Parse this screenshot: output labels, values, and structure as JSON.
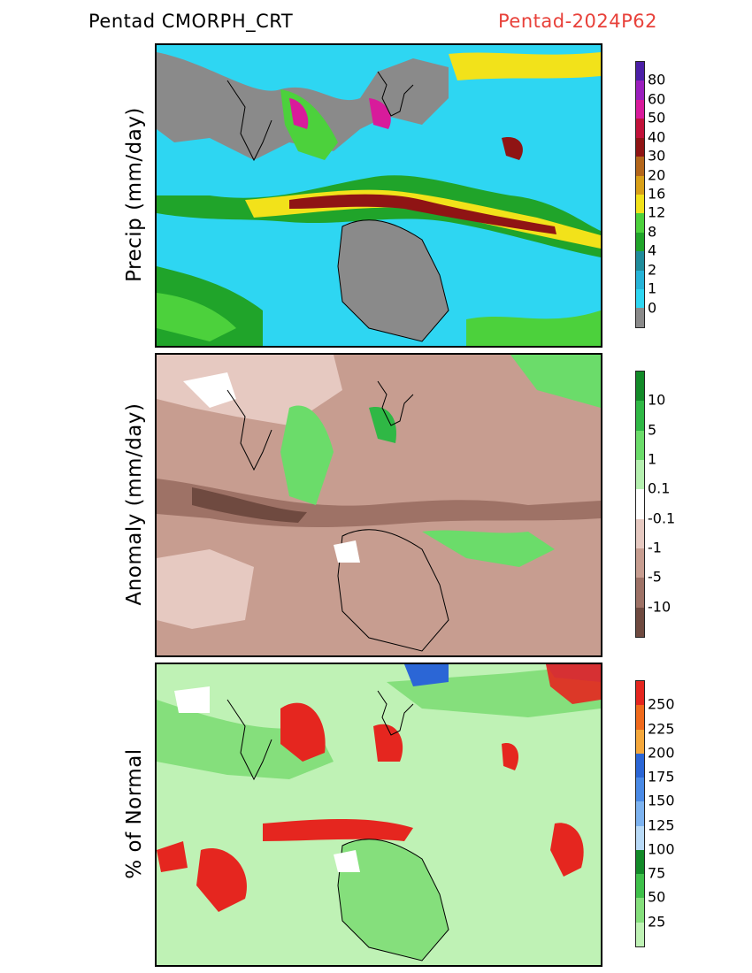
{
  "header": {
    "title_left": "Pentad CMORPH_CRT",
    "title_right": "Pentad-2024P62",
    "title_right_color": "#e8413a"
  },
  "panels": [
    {
      "id": "precip",
      "ylabel": "Precip (mm/day)",
      "colorbar": {
        "labels": [
          "80",
          "60",
          "50",
          "40",
          "30",
          "20",
          "16",
          "12",
          "8",
          "4",
          "2",
          "1",
          "0"
        ],
        "colors": [
          "#4b1fa6",
          "#9a1fbd",
          "#d81b9b",
          "#c1123a",
          "#8f1414",
          "#b4661a",
          "#d9a018",
          "#f2e21a",
          "#4cd13c",
          "#20a42a",
          "#1f8c9b",
          "#26b4d8",
          "#2ed6f2",
          "#8a8a8a"
        ]
      }
    },
    {
      "id": "anomaly",
      "ylabel": "Anomaly (mm/day)",
      "colorbar": {
        "labels": [
          "10",
          "5",
          "1",
          "0.1",
          "-0.1",
          "-1",
          "-5",
          "-10"
        ],
        "colors": [
          "#128a28",
          "#2fb845",
          "#6bdc6a",
          "#b5f0b0",
          "#ffffff",
          "#e6c9c1",
          "#c79d90",
          "#9e7266",
          "#6f4a40"
        ]
      }
    },
    {
      "id": "percent",
      "ylabel": "% of Normal",
      "colorbar": {
        "labels": [
          "250",
          "225",
          "200",
          "175",
          "150",
          "125",
          "100",
          "75",
          "50",
          "25"
        ],
        "colors": [
          "#e5261f",
          "#f06a1c",
          "#f5a83c",
          "#2b66d6",
          "#4a8ae6",
          "#7db3f0",
          "#b8daf7",
          "#128a28",
          "#3ec04a",
          "#85df7c",
          "#bff2b5"
        ]
      }
    }
  ]
}
